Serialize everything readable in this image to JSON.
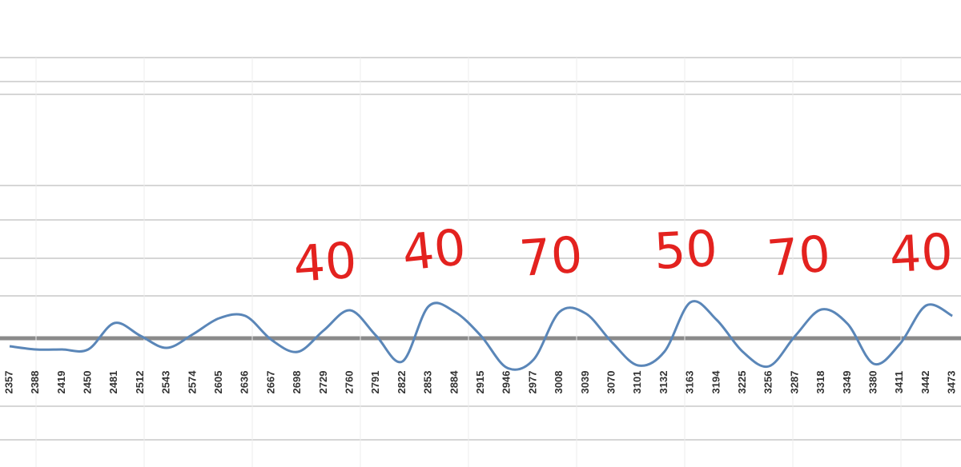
{
  "chart_data": {
    "type": "line",
    "categories": [
      "2357",
      "2388",
      "2419",
      "2450",
      "2481",
      "2512",
      "2543",
      "2574",
      "2605",
      "2636",
      "2667",
      "2698",
      "2729",
      "2760",
      "2791",
      "2822",
      "2853",
      "2884",
      "2915",
      "2946",
      "2977",
      "3008",
      "3039",
      "3070",
      "3101",
      "3132",
      "3163",
      "3194",
      "3225",
      "3256",
      "3287",
      "3318",
      "3349",
      "3380",
      "3411",
      "3442",
      "3473"
    ],
    "series": [
      {
        "color": "#5a86b8",
        "values": [
          27,
          23,
          23,
          23,
          56,
          40,
          25,
          42,
          62,
          65,
          35,
          20,
          47,
          72,
          40,
          8,
          77,
          70,
          40,
          0,
          10,
          70,
          68,
          32,
          3,
          20,
          82,
          60,
          20,
          2,
          40,
          73,
          55,
          5,
          30,
          78,
          65
        ]
      }
    ],
    "ylim": [
      0,
      100
    ],
    "annotations": [
      "40",
      "40",
      "70",
      "50",
      "70",
      "40"
    ]
  }
}
